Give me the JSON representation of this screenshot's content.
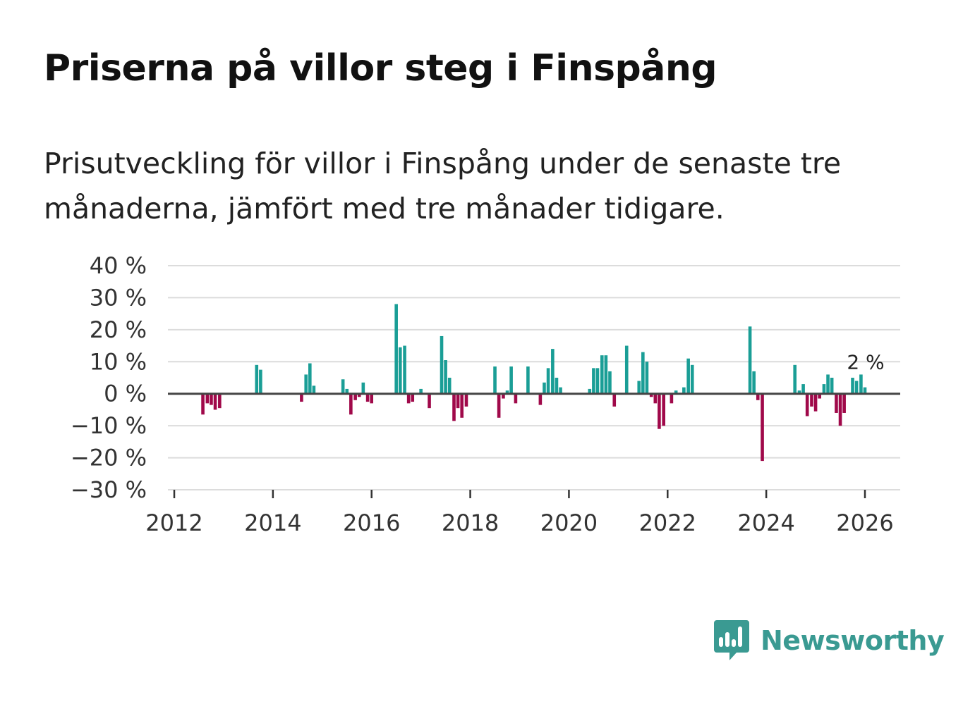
{
  "header": {
    "title": "Priserna på villor steg i Finspång",
    "subtitle": "Prisutveckling för villor i Finspång under de senaste tre månaderna, jämfört med tre månader tidigare."
  },
  "colors": {
    "positive": "#1a9e96",
    "negative": "#a0094a",
    "grid": "#dcdcdc",
    "zero_line": "#444444",
    "brand": "#3a9a92"
  },
  "brand": {
    "name": "Newsworthy"
  },
  "chart_data": {
    "type": "bar",
    "title": "Priserna på villor steg i Finspång",
    "xlabel": "",
    "ylabel": "",
    "ylim": [
      -30,
      40
    ],
    "xlim": [
      2012,
      2026.7
    ],
    "y_ticks": [
      {
        "value": 40,
        "label": "40 %"
      },
      {
        "value": 30,
        "label": "30 %"
      },
      {
        "value": 20,
        "label": "20 %"
      },
      {
        "value": 10,
        "label": "10 %"
      },
      {
        "value": 0,
        "label": "0 %"
      },
      {
        "value": -10,
        "label": "−10 %"
      },
      {
        "value": -20,
        "label": "−20 %"
      },
      {
        "value": -30,
        "label": "−30 %"
      }
    ],
    "x_ticks": [
      {
        "value": 2012,
        "label": "2012"
      },
      {
        "value": 2014,
        "label": "2014"
      },
      {
        "value": 2016,
        "label": "2016"
      },
      {
        "value": 2018,
        "label": "2018"
      },
      {
        "value": 2020,
        "label": "2020"
      },
      {
        "value": 2022,
        "label": "2022"
      },
      {
        "value": 2024,
        "label": "2024"
      },
      {
        "value": 2026,
        "label": "2026"
      }
    ],
    "grid": true,
    "annotation": {
      "x": 2026.0,
      "value": 2,
      "label": "2 %"
    },
    "series": [
      {
        "name": "Prisutveckling",
        "points": [
          {
            "x": 2012.58,
            "y": -6.5
          },
          {
            "x": 2012.67,
            "y": -3
          },
          {
            "x": 2012.75,
            "y": -3.5
          },
          {
            "x": 2012.83,
            "y": -5
          },
          {
            "x": 2012.92,
            "y": -4.5
          },
          {
            "x": 2013.67,
            "y": 9
          },
          {
            "x": 2013.75,
            "y": 7.5
          },
          {
            "x": 2014.58,
            "y": -2.5
          },
          {
            "x": 2014.67,
            "y": 6
          },
          {
            "x": 2014.75,
            "y": 9.5
          },
          {
            "x": 2014.83,
            "y": 2.5
          },
          {
            "x": 2015.42,
            "y": 4.5
          },
          {
            "x": 2015.5,
            "y": 1.5
          },
          {
            "x": 2015.58,
            "y": -6.5
          },
          {
            "x": 2015.67,
            "y": -2
          },
          {
            "x": 2015.75,
            "y": -1
          },
          {
            "x": 2015.83,
            "y": 3.5
          },
          {
            "x": 2015.92,
            "y": -2.5
          },
          {
            "x": 2016.0,
            "y": -3
          },
          {
            "x": 2016.5,
            "y": 28
          },
          {
            "x": 2016.58,
            "y": 14.5
          },
          {
            "x": 2016.67,
            "y": 15
          },
          {
            "x": 2016.75,
            "y": -3
          },
          {
            "x": 2016.83,
            "y": -2.5
          },
          {
            "x": 2017.0,
            "y": 1.5
          },
          {
            "x": 2017.17,
            "y": -4.5
          },
          {
            "x": 2017.42,
            "y": 18
          },
          {
            "x": 2017.5,
            "y": 10.5
          },
          {
            "x": 2017.58,
            "y": 5
          },
          {
            "x": 2017.67,
            "y": -8.5
          },
          {
            "x": 2017.75,
            "y": -4.5
          },
          {
            "x": 2017.83,
            "y": -7.5
          },
          {
            "x": 2017.92,
            "y": -4
          },
          {
            "x": 2018.5,
            "y": 8.5
          },
          {
            "x": 2018.58,
            "y": -7.5
          },
          {
            "x": 2018.67,
            "y": -1.5
          },
          {
            "x": 2018.75,
            "y": 1
          },
          {
            "x": 2018.83,
            "y": 8.5
          },
          {
            "x": 2018.92,
            "y": -3
          },
          {
            "x": 2019.17,
            "y": 8.5
          },
          {
            "x": 2019.42,
            "y": -3.5
          },
          {
            "x": 2019.5,
            "y": 3.5
          },
          {
            "x": 2019.58,
            "y": 8
          },
          {
            "x": 2019.67,
            "y": 14
          },
          {
            "x": 2019.75,
            "y": 5
          },
          {
            "x": 2019.83,
            "y": 2
          },
          {
            "x": 2020.42,
            "y": 1.5
          },
          {
            "x": 2020.5,
            "y": 8
          },
          {
            "x": 2020.58,
            "y": 8
          },
          {
            "x": 2020.67,
            "y": 12
          },
          {
            "x": 2020.75,
            "y": 12
          },
          {
            "x": 2020.83,
            "y": 7
          },
          {
            "x": 2020.92,
            "y": -4
          },
          {
            "x": 2021.17,
            "y": 15
          },
          {
            "x": 2021.42,
            "y": 4
          },
          {
            "x": 2021.5,
            "y": 13
          },
          {
            "x": 2021.58,
            "y": 10
          },
          {
            "x": 2021.67,
            "y": -1
          },
          {
            "x": 2021.75,
            "y": -3
          },
          {
            "x": 2021.83,
            "y": -11
          },
          {
            "x": 2021.92,
            "y": -10
          },
          {
            "x": 2022.08,
            "y": -3
          },
          {
            "x": 2022.17,
            "y": 1
          },
          {
            "x": 2022.33,
            "y": 2
          },
          {
            "x": 2022.42,
            "y": 11
          },
          {
            "x": 2022.5,
            "y": 9
          },
          {
            "x": 2023.67,
            "y": 21
          },
          {
            "x": 2023.75,
            "y": 7
          },
          {
            "x": 2023.83,
            "y": -2
          },
          {
            "x": 2023.92,
            "y": -21
          },
          {
            "x": 2024.58,
            "y": 9
          },
          {
            "x": 2024.67,
            "y": 1
          },
          {
            "x": 2024.75,
            "y": 3
          },
          {
            "x": 2024.83,
            "y": -7
          },
          {
            "x": 2024.92,
            "y": -4
          },
          {
            "x": 2025.0,
            "y": -5.5
          },
          {
            "x": 2025.08,
            "y": -1.5
          },
          {
            "x": 2025.17,
            "y": 3
          },
          {
            "x": 2025.25,
            "y": 6
          },
          {
            "x": 2025.33,
            "y": 5
          },
          {
            "x": 2025.42,
            "y": -6
          },
          {
            "x": 2025.5,
            "y": -10
          },
          {
            "x": 2025.58,
            "y": -6
          },
          {
            "x": 2025.75,
            "y": 5
          },
          {
            "x": 2025.83,
            "y": 4
          },
          {
            "x": 2025.92,
            "y": 6
          },
          {
            "x": 2026.0,
            "y": 2
          }
        ]
      }
    ]
  }
}
